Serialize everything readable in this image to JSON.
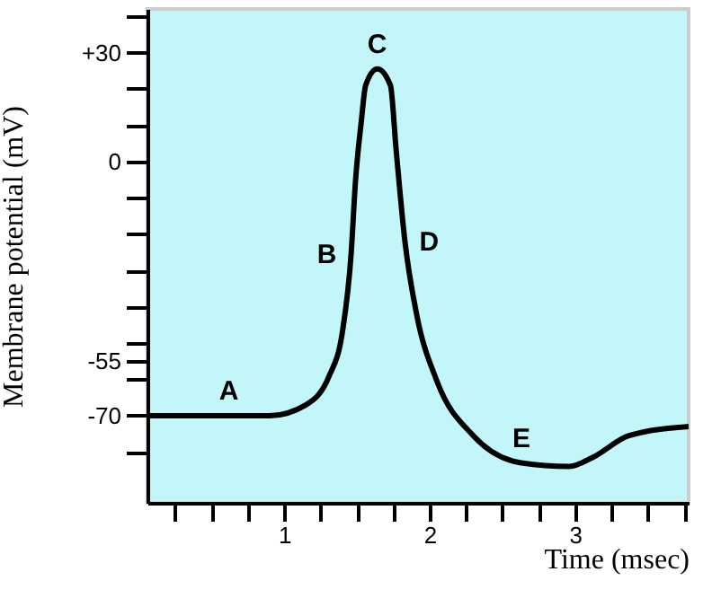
{
  "chart_data": {
    "type": "line",
    "xlabel": "Time (msec)",
    "ylabel": "Membrane potential (mV)",
    "x": [
      0.06,
      0.9,
      1.15,
      1.31,
      1.4,
      1.46,
      1.49,
      1.53,
      1.56,
      1.64,
      1.73,
      1.77,
      1.83,
      1.91,
      2.05,
      2.3,
      2.63,
      2.96,
      3.12,
      3.37,
      3.78
    ],
    "series": [
      {
        "color": "#000000",
        "values": [
          -70,
          -70,
          -67,
          -59,
          -47,
          -25.5,
          -5.5,
          11,
          21,
          25.5,
          21,
          3,
          -22,
          -42,
          -60.5,
          -75.5,
          -83,
          -84,
          -81.5,
          -75.5,
          -73
        ]
      }
    ],
    "xlim": [
      0.06,
      3.78
    ],
    "ylim": [
      -94,
      42
    ],
    "xticks": [
      {
        "value": 0.25,
        "label": null
      },
      {
        "value": 0.5,
        "label": null
      },
      {
        "value": 0.75,
        "label": null
      },
      1,
      {
        "value": 1.25,
        "label": null
      },
      {
        "value": 1.5,
        "label": null
      },
      {
        "value": 1.75,
        "label": null
      },
      2,
      {
        "value": 2.25,
        "label": null
      },
      {
        "value": 2.5,
        "label": null
      },
      {
        "value": 2.75,
        "label": null
      },
      3,
      {
        "value": 3.25,
        "label": null
      },
      {
        "value": 3.5,
        "label": null
      },
      {
        "value": 3.75,
        "label": null
      }
    ],
    "yticks": [
      {
        "value": 40,
        "label": null
      },
      {
        "value": 30,
        "label": "+30"
      },
      {
        "value": 20,
        "label": null
      },
      {
        "value": 10,
        "label": null
      },
      0,
      {
        "value": -10,
        "label": null
      },
      {
        "value": -20,
        "label": null
      },
      {
        "value": -30,
        "label": null
      },
      {
        "value": -40,
        "label": null
      },
      {
        "value": -50,
        "label": null
      },
      -55,
      {
        "value": -60,
        "label": null
      },
      -70,
      {
        "value": -80,
        "label": null
      }
    ],
    "annotations": [
      {
        "text": "A",
        "x": 0.62,
        "y": -70
      },
      {
        "text": "B",
        "x": 1.46,
        "y": -25.5
      },
      {
        "text": "C",
        "x": 1.64,
        "y": 25.5
      },
      {
        "text": "D",
        "x": 1.83,
        "y": -22
      },
      {
        "text": "E",
        "x": 2.63,
        "y": -83
      }
    ],
    "grid": false,
    "marker": "none",
    "line_style": "solid"
  }
}
